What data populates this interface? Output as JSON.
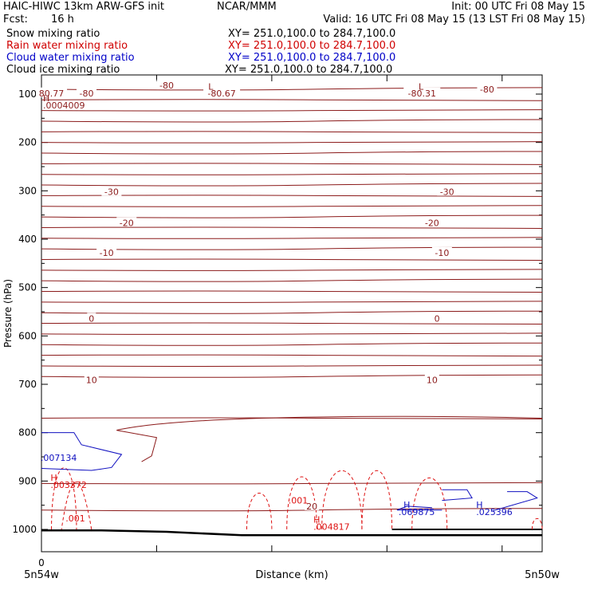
{
  "header": {
    "title": "HAIC-HIWC 13km ARW-GFS init",
    "org": "NCAR/MMM",
    "init": "Init: 00 UTC Fri 08 May 15",
    "fcst_label": "Fcst:",
    "fcst_value": "16 h",
    "valid": "Valid: 16 UTC Fri 08 May 15 (13 LST Fri 08 May 15)",
    "fields": [
      {
        "name": "Snow mixing ratio",
        "xy": "XY= 251.0,100.0 to 284.7,100.0",
        "color": "#000000"
      },
      {
        "name": "Rain water mixing ratio",
        "xy": "XY= 251.0,100.0 to 284.7,100.0",
        "color": "#d00000"
      },
      {
        "name": "Cloud water mixing ratio",
        "xy": "XY= 251.0,100.0 to 284.7,100.0",
        "color": "#0000c8"
      },
      {
        "name": "Cloud ice mixing ratio",
        "xy": "XY= 251.0,100.0 to 284.7,100.0",
        "color": "#000000"
      }
    ]
  },
  "colors": {
    "temperature": "#8b1a1a",
    "rain": "#dd1111",
    "cloud_water": "#1010c0",
    "ground": "#000000",
    "axes": "#000000"
  },
  "chart_data": {
    "type": "line",
    "xlabel": "Distance (km)",
    "ylabel": "Pressure (hPa)",
    "x_left_label": "5n54w",
    "x_right_label": "5n50w",
    "x_origin_label": "0",
    "y_ticks": [
      100,
      200,
      300,
      400,
      500,
      600,
      700,
      800,
      900,
      1000
    ],
    "ylim": [
      1050,
      70
    ],
    "y_scale": "linear",
    "grid": false,
    "temperature_contour_labels": [
      {
        "text": "-80",
        "p": 82,
        "xf": 0.25
      },
      {
        "text": "-80",
        "p": 98,
        "xf": 0.09
      },
      {
        "text": "-80.67",
        "p": 98,
        "xf": 0.36
      },
      {
        "text": "-80.31",
        "p": 98,
        "xf": 0.76
      },
      {
        "text": "-80",
        "p": 90,
        "xf": 0.89
      },
      {
        "text": "80.77",
        "p": 98,
        "xf": 0.02
      },
      {
        "text": "-30",
        "p": 302,
        "xf": 0.14
      },
      {
        "text": "-30",
        "p": 302,
        "xf": 0.81
      },
      {
        "text": "-20",
        "p": 366,
        "xf": 0.17
      },
      {
        "text": "-20",
        "p": 366,
        "xf": 0.78
      },
      {
        "text": "-10",
        "p": 428,
        "xf": 0.13
      },
      {
        "text": "-10",
        "p": 428,
        "xf": 0.8
      },
      {
        "text": "0",
        "p": 564,
        "xf": 0.1
      },
      {
        "text": "0",
        "p": 564,
        "xf": 0.79
      },
      {
        "text": "10",
        "p": 691,
        "xf": 0.1
      },
      {
        "text": "10",
        "p": 691,
        "xf": 0.78
      },
      {
        "text": "20",
        "p": 952,
        "xf": 0.54
      }
    ],
    "extrema_labels": [
      {
        "text": "L",
        "p": 84,
        "xf": 0.33,
        "color": "temperature"
      },
      {
        "text": "L",
        "p": 84,
        "xf": 0.75,
        "color": "temperature"
      },
      {
        "text": "H",
        "p": 108,
        "xf": 0.0,
        "color": "temperature"
      },
      {
        "text": ".0004009",
        "p": 123,
        "xf": 0.0,
        "color": "temperature"
      },
      {
        "text": "H",
        "p": 893,
        "xf": 0.015,
        "color": "rain"
      },
      {
        "text": ".003372",
        "p": 908,
        "xf": 0.015,
        "color": "rain"
      },
      {
        "text": ".001",
        "p": 977,
        "xf": 0.045,
        "color": "rain"
      },
      {
        "text": ".001",
        "p": 940,
        "xf": 0.49,
        "color": "rain"
      },
      {
        "text": "H",
        "p": 979,
        "xf": 0.54,
        "color": "rain"
      },
      {
        "text": ".004817",
        "p": 994,
        "xf": 0.54,
        "color": "rain"
      },
      {
        "text": ".007134",
        "p": 852,
        "xf": -0.005,
        "color": "cloud_water"
      },
      {
        "text": "H",
        "p": 949,
        "xf": 0.72,
        "color": "cloud_water"
      },
      {
        "text": ".069875",
        "p": 964,
        "xf": 0.71,
        "color": "cloud_water"
      },
      {
        "text": "H",
        "p": 949,
        "xf": 0.865,
        "color": "cloud_water"
      },
      {
        "text": ".025396",
        "p": 964,
        "xf": 0.865,
        "color": "cloud_water"
      }
    ]
  }
}
